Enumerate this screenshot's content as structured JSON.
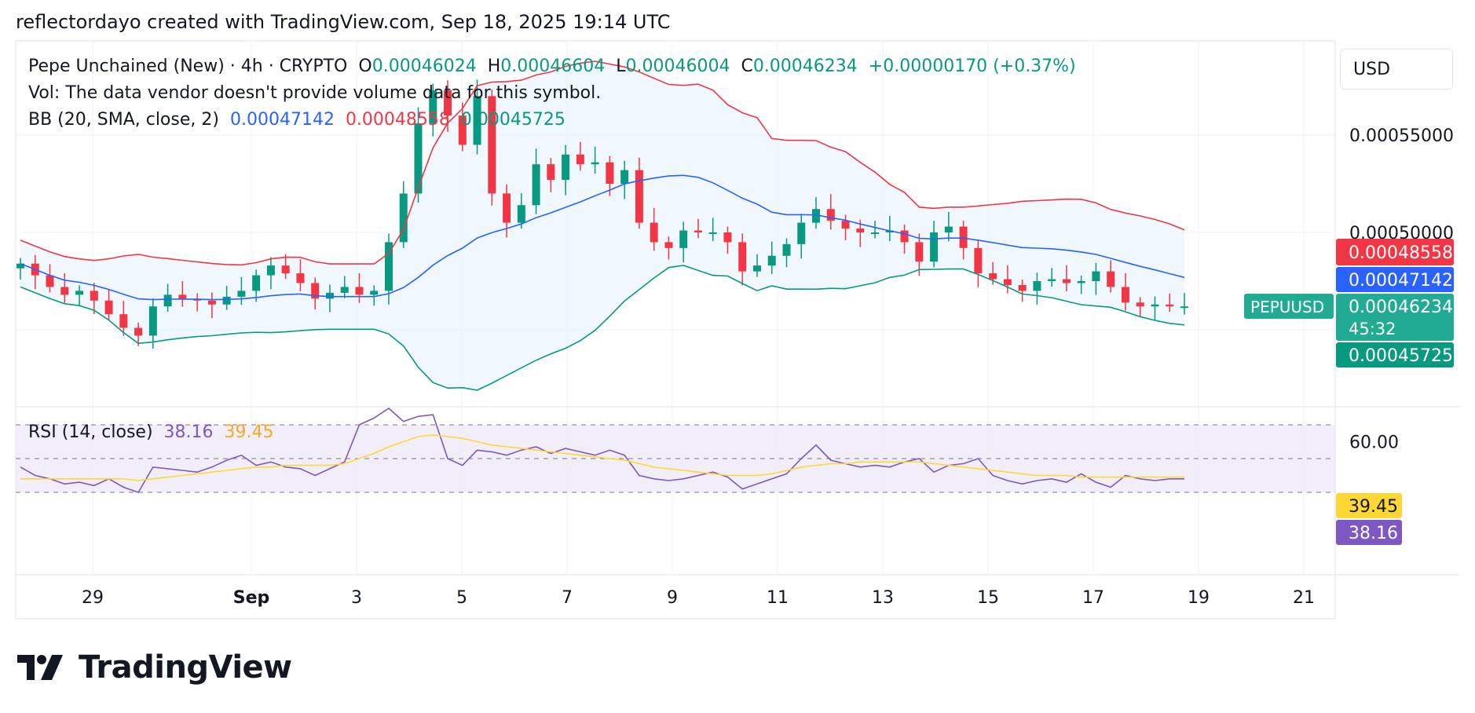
{
  "header": {
    "attribution": "reflectordayo created with TradingView.com, Sep 18, 2025 19:14 UTC"
  },
  "legend": {
    "symbol": "Pepe Unchained (New) · 4h · CRYPTO",
    "o_label": "O",
    "o_value": "0.00046024",
    "h_label": "H",
    "h_value": "0.00046604",
    "l_label": "L",
    "l_value": "0.00046004",
    "c_label": "C",
    "c_value": "0.00046234",
    "change": "+0.00000170 (+0.37%)",
    "vol": "Vol: The data vendor doesn't provide volume data for this symbol.",
    "bb_label": "BB (20, SMA, close, 2)",
    "bb_basis": "0.00047142",
    "bb_upper": "0.00048558",
    "bb_lower": "0.00045725",
    "rsi_label": "RSI (14, close)",
    "rsi_value": "38.16",
    "rsi_ma": "39.45"
  },
  "currency": "USD",
  "price_scale": {
    "ticks": [
      "0.00055000",
      "0.00050000"
    ],
    "badges": {
      "upper": "0.00048558",
      "basis": "0.00047142",
      "last": "0.00046234",
      "countdown": "45:32",
      "lower": "0.00045725",
      "symbol": "PEPUUSD"
    }
  },
  "rsi_scale": {
    "ticks": [
      "60.00"
    ],
    "badges": {
      "ma": "39.45",
      "rsi": "38.16"
    }
  },
  "time_axis": [
    "29",
    "Sep",
    "3",
    "5",
    "7",
    "9",
    "11",
    "13",
    "15",
    "17",
    "19",
    "21"
  ],
  "colors": {
    "up": "#089981",
    "down": "#f23645",
    "basis": "#2962ff",
    "upper": "#f23645",
    "lower": "#089981",
    "band_fill": "#e3f2fd",
    "rsi": "#7e57c2",
    "rsi_ma": "#fdd835",
    "rsi_fill": "#ede7f6"
  },
  "chart_data": [
    {
      "type": "candlestick",
      "title": "Pepe Unchained (New) · 4h · CRYPTO",
      "interval": "4h",
      "ylim": [
        0.0004,
        0.00059
      ],
      "x_labels": [
        "29",
        "Sep",
        "3",
        "5",
        "7",
        "9",
        "11",
        "13",
        "15",
        "17",
        "19",
        "21"
      ],
      "close_trace": [
        0.000484,
        0.000478,
        0.000472,
        0.000468,
        0.00047,
        0.000465,
        0.000458,
        0.000451,
        0.000447,
        0.000462,
        0.000468,
        0.000466,
        0.000465,
        0.000463,
        0.000467,
        0.00047,
        0.000478,
        0.000483,
        0.000479,
        0.000474,
        0.000466,
        0.000469,
        0.000472,
        0.000468,
        0.00047,
        0.000495,
        0.00052,
        0.000556,
        0.000573,
        0.00056,
        0.000545,
        0.00057,
        0.00052,
        0.000505,
        0.000514,
        0.000535,
        0.000527,
        0.00054,
        0.000535,
        0.000536,
        0.000525,
        0.000532,
        0.000505,
        0.000495,
        0.000492,
        0.000501,
        0.0005,
        0.0005,
        0.000495,
        0.00048,
        0.000483,
        0.000488,
        0.000494,
        0.000505,
        0.000512,
        0.000506,
        0.000502,
        0.0005,
        0.0005,
        0.000501,
        0.000495,
        0.000485,
        0.0005,
        0.000503,
        0.000492,
        0.000479,
        0.000476,
        0.000473,
        0.00047,
        0.000475,
        0.000476,
        0.000474,
        0.000475,
        0.00048,
        0.000472,
        0.000464,
        0.000462,
        0.000463,
        0.000462,
        0.000462
      ],
      "bb": {
        "basis_last": 0.00047142,
        "upper_last": 0.00048558,
        "lower_last": 0.00045725
      },
      "last_close": 0.00046234
    },
    {
      "type": "line",
      "title": "RSI (14, close)",
      "ylim": [
        20,
        80
      ],
      "reference_lines": [
        70,
        50,
        30
      ],
      "series": [
        {
          "name": "RSI",
          "last": 38.16,
          "values": [
            45,
            40,
            38,
            35,
            36,
            34,
            38,
            33,
            30,
            45,
            44,
            43,
            42,
            45,
            49,
            52,
            46,
            48,
            45,
            44,
            40,
            44,
            48,
            70,
            74,
            80,
            72,
            75,
            76,
            50,
            46,
            55,
            54,
            52,
            55,
            57,
            53,
            56,
            54,
            52,
            55,
            52,
            40,
            38,
            37,
            38,
            40,
            42,
            39,
            32,
            35,
            38,
            41,
            50,
            58,
            49,
            47,
            45,
            46,
            45,
            48,
            50,
            42,
            46,
            47,
            50,
            40,
            37,
            35,
            37,
            38,
            36,
            41,
            36,
            33,
            40,
            38,
            37,
            38,
            38
          ]
        },
        {
          "name": "RSI MA",
          "last": 39.45,
          "values": [
            38,
            38,
            38,
            38,
            38,
            38,
            38,
            38,
            37,
            38,
            39,
            40,
            41,
            42,
            43,
            44,
            45,
            45,
            46,
            46,
            46,
            46,
            47,
            50,
            53,
            57,
            60,
            63,
            64,
            63,
            62,
            60,
            58,
            57,
            56,
            55,
            54,
            53,
            52,
            51,
            50,
            49,
            47,
            45,
            44,
            43,
            42,
            41,
            40,
            40,
            40,
            41,
            43,
            45,
            46,
            47,
            47,
            48,
            48,
            48,
            48,
            48,
            47,
            46,
            45,
            44,
            43,
            42,
            41,
            40,
            40,
            40,
            39,
            39,
            39,
            39,
            39,
            39,
            39,
            39
          ]
        }
      ]
    }
  ]
}
